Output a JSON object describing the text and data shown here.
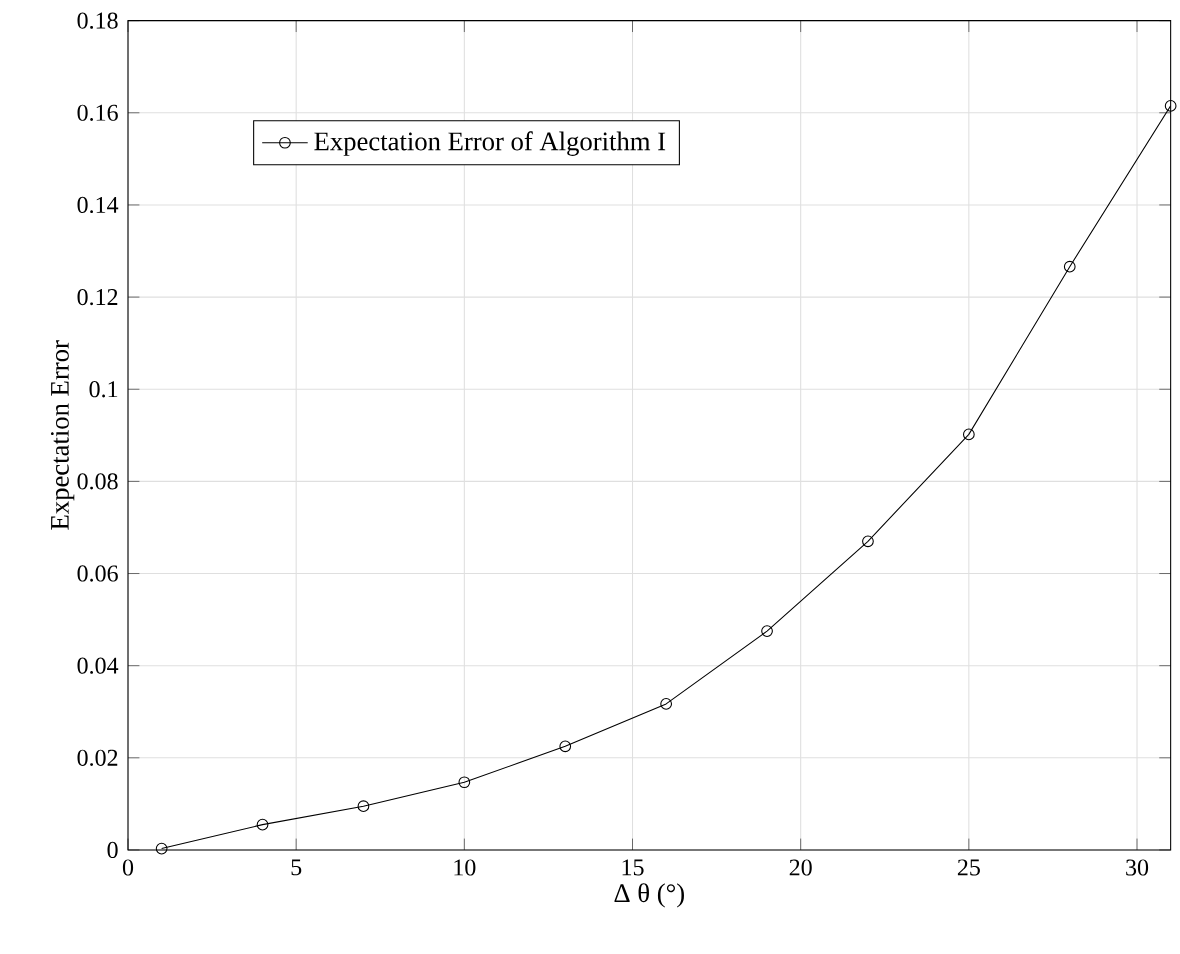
{
  "chart_data": {
    "type": "line",
    "xlabel": "Δ θ (°)",
    "ylabel": "Expectation Error",
    "x": [
      1,
      4,
      7,
      10,
      13,
      16,
      19,
      22,
      25,
      28,
      31
    ],
    "series": [
      {
        "name": "Expectation Error of Algorithm I",
        "color": "#000000",
        "values": [
          0.0003,
          0.0055,
          0.0095,
          0.0147,
          0.0225,
          0.0317,
          0.0475,
          0.067,
          0.0902,
          0.1266,
          0.1615
        ]
      }
    ],
    "xlim": [
      0,
      31
    ],
    "ylim": [
      0,
      0.18
    ],
    "xticks": [
      0,
      5,
      10,
      15,
      20,
      25,
      30
    ],
    "yticks": [
      0,
      0.02,
      0.04,
      0.06,
      0.08,
      0.1,
      0.12,
      0.14,
      0.16,
      0.18
    ],
    "grid": true,
    "legend": "top left",
    "marker": "circle",
    "line_style": "solid"
  }
}
